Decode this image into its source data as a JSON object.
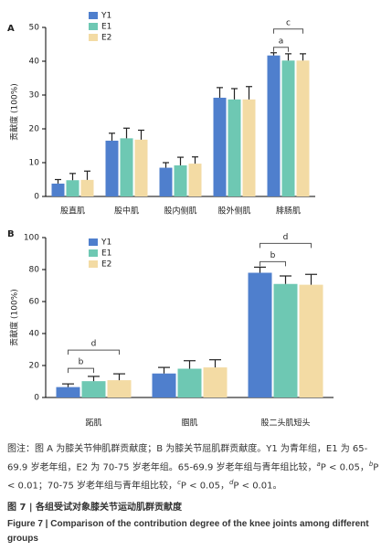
{
  "chart_data": [
    {
      "type": "bar",
      "panel": "A",
      "ylabel": "贡献度 (100%)",
      "categories": [
        "股直肌",
        "股中肌",
        "股内侧肌",
        "股外侧肌",
        "腓肠肌"
      ],
      "series": [
        {
          "name": "Y1",
          "color": "#4f7fcd",
          "values": [
            3.8,
            16.5,
            8.5,
            29.2,
            41.7
          ],
          "errors": [
            1.2,
            2.2,
            1.5,
            3.0,
            0.8
          ]
        },
        {
          "name": "E1",
          "color": "#6ec8b3",
          "values": [
            4.8,
            17.2,
            9.2,
            28.7,
            40.2
          ],
          "errors": [
            2.0,
            3.0,
            2.4,
            3.2,
            2.0
          ]
        },
        {
          "name": "E2",
          "color": "#f3dba4",
          "values": [
            4.9,
            16.8,
            9.7,
            28.7,
            40.2
          ],
          "errors": [
            2.6,
            2.8,
            2.0,
            3.8,
            2.0
          ]
        }
      ],
      "ylim": [
        0,
        50
      ],
      "yticks": [
        0,
        10,
        20,
        30,
        40,
        50
      ],
      "legend": "upper left",
      "annotations": [
        {
          "text": "a",
          "category": 4,
          "from": 0,
          "to": 1
        },
        {
          "text": "c",
          "category": 4,
          "from": 0,
          "to": 2
        }
      ]
    },
    {
      "type": "bar",
      "panel": "B",
      "ylabel": "贡献度 (100%)",
      "categories": [
        "跖肌",
        "腘肌",
        "股二头肌短头"
      ],
      "series": [
        {
          "name": "Y1",
          "color": "#4f7fcd",
          "values": [
            6.5,
            15.0,
            78.0
          ],
          "errors": [
            2.0,
            3.8,
            3.5
          ]
        },
        {
          "name": "E1",
          "color": "#6ec8b3",
          "values": [
            10.2,
            18.0,
            71.0
          ],
          "errors": [
            3.0,
            5.0,
            5.0
          ]
        },
        {
          "name": "E2",
          "color": "#f3dba4",
          "values": [
            10.8,
            18.8,
            70.5
          ],
          "errors": [
            4.0,
            4.8,
            6.5
          ]
        }
      ],
      "ylim": [
        0,
        100
      ],
      "yticks": [
        0,
        20,
        40,
        60,
        80,
        100
      ],
      "legend": "upper left",
      "annotations": [
        {
          "text": "b",
          "category": 0,
          "from": 0,
          "to": 1
        },
        {
          "text": "d",
          "category": 0,
          "from": 0,
          "to": 2
        },
        {
          "text": "b",
          "category": 2,
          "from": 0,
          "to": 1
        },
        {
          "text": "d",
          "category": 2,
          "from": 0,
          "to": 2
        }
      ]
    }
  ],
  "caption": {
    "note_parts": [
      "图注：图 A 为膝关节伸肌群贡献度；B 为膝关节屈肌群贡献度。Y1 为青年组，E1 为 65-69.9 岁老年组，E2 为 70-75 岁老年组。65-69.9 岁老年组与青年组比较，",
      "a",
      "P < 0.05，",
      "b",
      "P < 0.01；70-75 岁老年组与青年组比较，",
      "c",
      "P < 0.05，",
      "d",
      "P < 0.01。"
    ],
    "title_cn": "图 7 | 各组受试对象膝关节运动肌群贡献度",
    "title_en": "Figure 7 | Comparison of the contribution degree of the knee joints among different groups"
  }
}
